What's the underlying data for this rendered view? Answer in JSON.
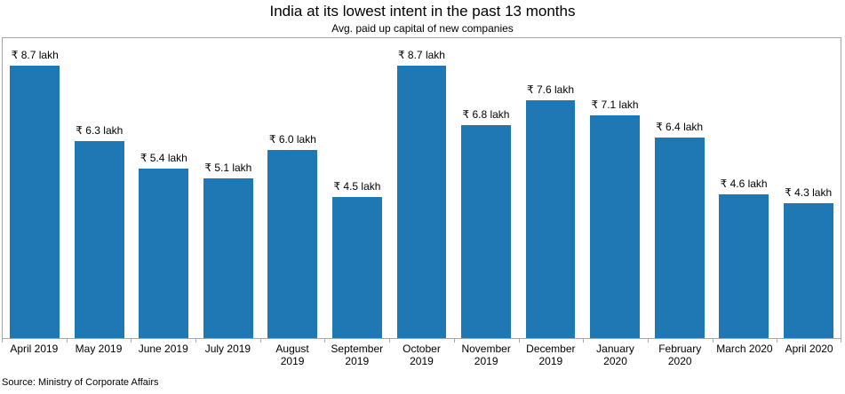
{
  "title": "India at its lowest intent in the past 13 months",
  "subtitle": "Avg. paid up capital of new companies",
  "source": "Source: Ministry of Corporate Affairs",
  "colors": {
    "bar": "#1f77b4",
    "frame": "#a6a6a6",
    "text": "#000000"
  },
  "chart_data": {
    "type": "bar",
    "title": "India at its lowest intent in the past 13 months",
    "subtitle": "Avg. paid up capital of new companies",
    "xlabel": "",
    "ylabel": "",
    "unit": "₹ lakh",
    "categories": [
      "April 2019",
      "May 2019",
      "June 2019",
      "July 2019",
      "August 2019",
      "September 2019",
      "October 2019",
      "November 2019",
      "December 2019",
      "January 2020",
      "February 2020",
      "March 2020",
      "April 2020"
    ],
    "category_display_lines": [
      [
        "April 2019"
      ],
      [
        "May 2019"
      ],
      [
        "June 2019"
      ],
      [
        "July 2019"
      ],
      [
        "August",
        "2019"
      ],
      [
        "September",
        "2019"
      ],
      [
        "October",
        "2019"
      ],
      [
        "November",
        "2019"
      ],
      [
        "December",
        "2019"
      ],
      [
        "January",
        "2020"
      ],
      [
        "February",
        "2020"
      ],
      [
        "March 2020"
      ],
      [
        "April 2020"
      ]
    ],
    "values": [
      8.7,
      6.3,
      5.4,
      5.1,
      6.0,
      4.5,
      8.7,
      6.8,
      7.6,
      7.1,
      6.4,
      4.6,
      4.3
    ],
    "value_labels": [
      "₹ 8.7 lakh",
      "₹ 6.3 lakh",
      "₹ 5.4 lakh",
      "₹ 5.1 lakh",
      "₹ 6.0 lakh",
      "₹ 4.5 lakh",
      "₹ 8.7 lakh",
      "₹ 6.8 lakh",
      "₹ 7.6 lakh",
      "₹ 7.1 lakh",
      "₹ 6.4 lakh",
      "₹ 4.6 lakh",
      "₹ 4.3 lakh"
    ],
    "ylim": [
      0,
      9.57
    ],
    "grid": false,
    "legend": null,
    "source": "Source: Ministry of Corporate Affairs"
  }
}
